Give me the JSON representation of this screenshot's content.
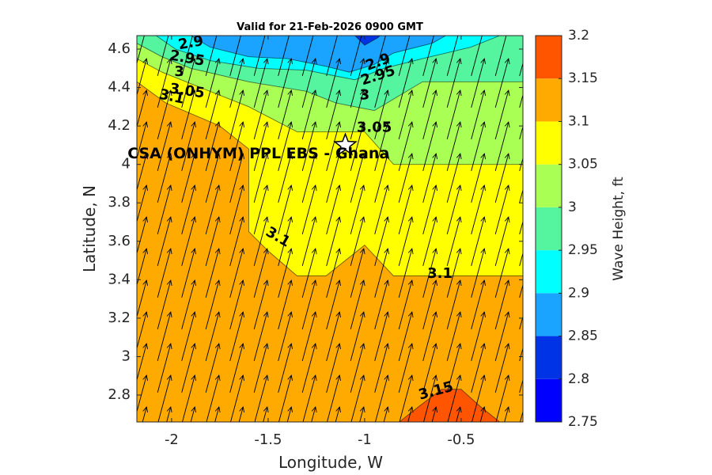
{
  "chart_data": {
    "type": "heatmap",
    "title": "Valid for 21-Feb-2026 0900 GMT",
    "xlabel": "Longitude, W",
    "ylabel": "Latitude, N",
    "colorbar_label": "Wave Height, ft",
    "xlim": [
      -2.18,
      -0.18
    ],
    "ylim": [
      2.66,
      4.67
    ],
    "xticks": [
      -2,
      -1.5,
      -1,
      -0.5
    ],
    "xtick_labels": [
      "-2",
      "-1.5",
      "-1",
      "-0.5"
    ],
    "yticks": [
      2.8,
      3.0,
      3.2,
      3.4,
      3.6,
      3.8,
      4.0,
      4.2,
      4.4,
      4.6
    ],
    "ytick_labels": [
      "2.8",
      "3",
      "3.2",
      "3.4",
      "3.6",
      "3.8",
      "4",
      "4.2",
      "4.4",
      "4.6"
    ],
    "colorbar": {
      "range": [
        2.75,
        3.2
      ],
      "ticks": [
        "2.75",
        "2.8",
        "2.85",
        "2.9",
        "2.95",
        "3",
        "3.05",
        "3.1",
        "3.15",
        "3.2"
      ],
      "levels": [
        {
          "min": 2.75,
          "max": 2.8,
          "color": "#0000ff"
        },
        {
          "min": 2.8,
          "max": 2.85,
          "color": "#0033e6"
        },
        {
          "min": 2.85,
          "max": 2.9,
          "color": "#1aa3ff"
        },
        {
          "min": 2.9,
          "max": 2.95,
          "color": "#00ffff"
        },
        {
          "min": 2.95,
          "max": 3.0,
          "color": "#55f5a0"
        },
        {
          "min": 3.0,
          "max": 3.05,
          "color": "#aaff55"
        },
        {
          "min": 3.05,
          "max": 3.1,
          "color": "#ffff00"
        },
        {
          "min": 3.1,
          "max": 3.15,
          "color": "#ffaa00"
        },
        {
          "min": 3.15,
          "max": 3.2,
          "color": "#ff5500"
        }
      ]
    },
    "regions": [
      {
        "value": 3.125,
        "color": "#ffaa00",
        "points": [
          [
            -2.18,
            2.66
          ],
          [
            -0.18,
            2.66
          ],
          [
            -0.18,
            4.67
          ],
          [
            -2.18,
            4.67
          ]
        ]
      },
      {
        "value": 3.075,
        "color": "#ffff00",
        "points": [
          [
            -2.18,
            4.43
          ],
          [
            -2.03,
            4.32
          ],
          [
            -1.75,
            4.2
          ],
          [
            -1.6,
            4.08
          ],
          [
            -1.6,
            3.65
          ],
          [
            -1.5,
            3.55
          ],
          [
            -1.35,
            3.42
          ],
          [
            -1.2,
            3.42
          ],
          [
            -1.0,
            3.58
          ],
          [
            -0.85,
            3.42
          ],
          [
            -0.18,
            3.42
          ],
          [
            -0.18,
            4.67
          ],
          [
            -2.18,
            4.67
          ]
        ]
      },
      {
        "value": 3.025,
        "color": "#aaff55",
        "points": [
          [
            -2.18,
            4.55
          ],
          [
            -2.05,
            4.48
          ],
          [
            -1.85,
            4.4
          ],
          [
            -1.6,
            4.3
          ],
          [
            -1.35,
            4.17
          ],
          [
            -1.0,
            4.17
          ],
          [
            -0.85,
            4.0
          ],
          [
            -0.18,
            4.0
          ],
          [
            -0.18,
            4.67
          ],
          [
            -2.18,
            4.67
          ]
        ]
      },
      {
        "value": 2.975,
        "color": "#55f5a0",
        "points": [
          [
            -2.18,
            4.63
          ],
          [
            -2.05,
            4.56
          ],
          [
            -1.9,
            4.5
          ],
          [
            -1.6,
            4.43
          ],
          [
            -1.3,
            4.38
          ],
          [
            -1.15,
            4.32
          ],
          [
            -0.95,
            4.28
          ],
          [
            -0.7,
            4.43
          ],
          [
            -0.18,
            4.43
          ],
          [
            -0.18,
            4.67
          ],
          [
            -2.18,
            4.67
          ]
        ]
      },
      {
        "value": 2.925,
        "color": "#00ffff",
        "points": [
          [
            -2.08,
            4.67
          ],
          [
            -1.98,
            4.6
          ],
          [
            -1.8,
            4.54
          ],
          [
            -1.55,
            4.5
          ],
          [
            -1.3,
            4.49
          ],
          [
            -1.15,
            4.46
          ],
          [
            -1.05,
            4.44
          ],
          [
            -0.9,
            4.5
          ],
          [
            -0.7,
            4.55
          ],
          [
            -0.45,
            4.61
          ],
          [
            -0.3,
            4.67
          ]
        ]
      },
      {
        "value": 2.875,
        "color": "#1aa3ff",
        "points": [
          [
            -1.9,
            4.67
          ],
          [
            -1.8,
            4.61
          ],
          [
            -1.6,
            4.56
          ],
          [
            -1.4,
            4.55
          ],
          [
            -1.2,
            4.51
          ],
          [
            -1.08,
            4.48
          ],
          [
            -0.95,
            4.52
          ],
          [
            -0.85,
            4.58
          ],
          [
            -0.65,
            4.63
          ],
          [
            -0.58,
            4.67
          ]
        ]
      },
      {
        "value": 2.825,
        "color": "#0033e6",
        "points": [
          [
            -1.05,
            4.67
          ],
          [
            -1.0,
            4.62
          ],
          [
            -0.93,
            4.66
          ],
          [
            -0.92,
            4.67
          ]
        ]
      },
      {
        "value": 3.175,
        "color": "#ff5500",
        "points": [
          [
            -0.82,
            2.66
          ],
          [
            -0.72,
            2.74
          ],
          [
            -0.6,
            2.83
          ],
          [
            -0.5,
            2.83
          ],
          [
            -0.4,
            2.74
          ],
          [
            -0.3,
            2.66
          ]
        ]
      }
    ],
    "contour_labels": [
      {
        "text": "2.9",
        "lon": -1.9,
        "lat": 4.63,
        "angle": -10
      },
      {
        "text": "2.95",
        "lon": -1.92,
        "lat": 4.55,
        "angle": 10
      },
      {
        "text": "3",
        "lon": -1.96,
        "lat": 4.48,
        "angle": 0
      },
      {
        "text": "3.05",
        "lon": -1.92,
        "lat": 4.38,
        "angle": 8
      },
      {
        "text": "3.1",
        "lon": -2.0,
        "lat": 4.35,
        "angle": 12
      },
      {
        "text": "2.9",
        "lon": -0.93,
        "lat": 4.53,
        "angle": -20
      },
      {
        "text": "2.95",
        "lon": -0.93,
        "lat": 4.46,
        "angle": -18
      },
      {
        "text": "3",
        "lon": -1.0,
        "lat": 4.36,
        "angle": 0
      },
      {
        "text": "3.05",
        "lon": -0.95,
        "lat": 4.19,
        "angle": 0
      },
      {
        "text": "3.1",
        "lon": -1.45,
        "lat": 3.62,
        "angle": 30
      },
      {
        "text": "3.1",
        "lon": -0.61,
        "lat": 3.43,
        "angle": 0
      },
      {
        "text": "3.15",
        "lon": -0.63,
        "lat": 2.82,
        "angle": -15
      }
    ],
    "site": {
      "name": "CSA (ONHYM) PPL EBS  - Ghana",
      "marker": "star-icon",
      "lon": -1.1,
      "lat": 4.1
    },
    "vectors": {
      "direction": "north-northeast",
      "color": "#000000"
    }
  }
}
